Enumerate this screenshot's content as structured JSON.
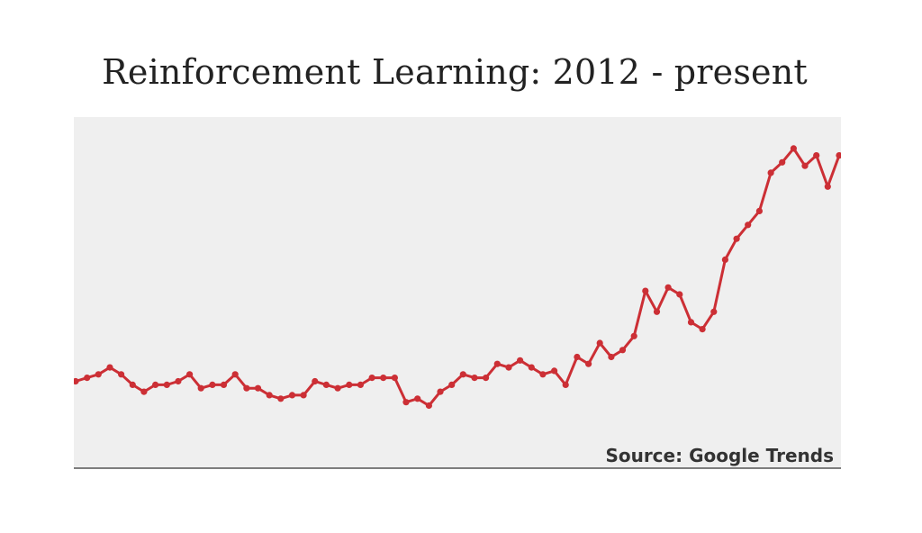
{
  "chart_data": {
    "type": "line",
    "title": "Reinforcement Learning: 2012 - present",
    "source_note": "Source: Google Trends",
    "xlabel": "",
    "ylabel": "",
    "grid": false,
    "legend": "none",
    "x_count": 68,
    "ylim": [
      0,
      100
    ],
    "colors": {
      "line": "#cc2f35",
      "plot_bg": "#efefef",
      "axis": "#555555"
    },
    "series": [
      {
        "values": [
          25,
          26,
          27,
          29,
          27,
          24,
          22,
          24,
          24,
          25,
          27,
          23,
          24,
          24,
          27,
          23,
          23,
          21,
          20,
          21,
          21,
          25,
          24,
          23,
          24,
          24,
          26,
          26,
          26,
          19,
          20,
          18,
          22,
          24,
          27,
          26,
          26,
          30,
          29,
          31,
          29,
          27,
          28,
          24,
          32,
          30,
          36,
          32,
          34,
          38,
          51,
          45,
          52,
          50,
          42,
          40,
          45,
          60,
          66,
          70,
          74,
          85,
          88,
          92,
          87,
          90,
          81,
          90
        ]
      }
    ]
  }
}
